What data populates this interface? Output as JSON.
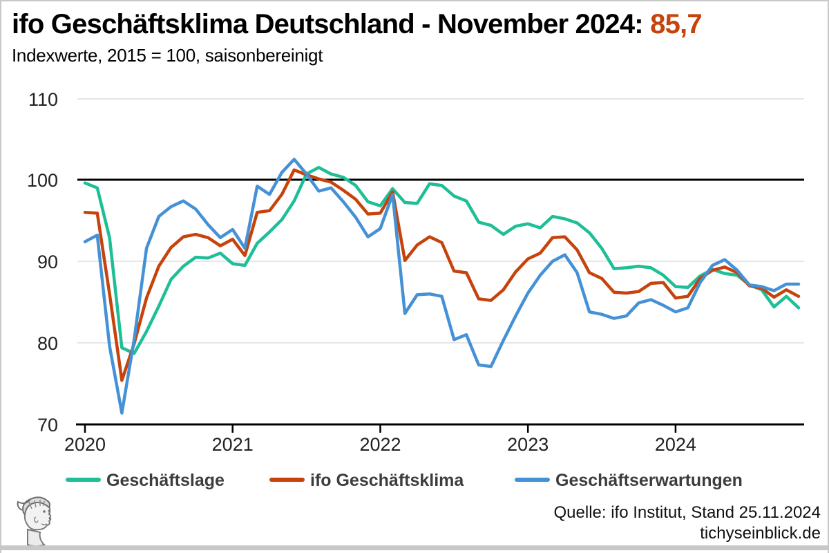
{
  "header": {
    "title_prefix": "ifo Geschäftsklima Deutschland - November 2024: ",
    "title_value": "85,7",
    "subtitle": "Indexwerte, 2015 = 100, saisonbereinigt"
  },
  "footer": {
    "source_line1": "Quelle: ifo Institut, Stand 25.11.2024",
    "source_line2": "tichyseinblick.de",
    "logo": "classical-head-engraving-logo"
  },
  "colors": {
    "accent_title_value": "#C6430C",
    "lage_green": "#1EBE96",
    "klima_red": "#C6430C",
    "erwartungen_blue": "#4491D6",
    "grid_gray": "#e6e6e6",
    "axis_black": "#000000",
    "frame_gray": "#c8c8c8"
  },
  "chart_data": {
    "type": "line",
    "title": "ifo Geschäftsklima Deutschland - November 2024: 85,7",
    "subtitle": "Indexwerte, 2015 = 100, saisonbereinigt",
    "frequency": "monthly",
    "x_start": "2020-01",
    "x_end": "2024-11",
    "x_tick_labels": [
      "2020",
      "2021",
      "2022",
      "2023",
      "2024"
    ],
    "y_ticks": [
      110,
      100,
      90,
      80,
      70
    ],
    "ylim": [
      70,
      112
    ],
    "reference_line": 100,
    "grid": "horizontal",
    "legend_position": "bottom",
    "series": [
      {
        "id": "geschaeftslage",
        "name": "Geschäftslage",
        "color": "#1EBE96",
        "values": [
          99.6,
          99.0,
          92.9,
          79.4,
          78.7,
          81.4,
          84.5,
          87.8,
          89.4,
          90.5,
          90.4,
          91.0,
          89.7,
          89.5,
          92.2,
          93.6,
          95.1,
          97.4,
          100.7,
          101.5,
          100.7,
          100.3,
          99.3,
          97.3,
          96.8,
          98.9,
          97.2,
          97.1,
          99.5,
          99.3,
          98.0,
          97.4,
          94.8,
          94.4,
          93.3,
          94.3,
          94.6,
          94.1,
          95.5,
          95.2,
          94.7,
          93.5,
          91.6,
          89.1,
          89.2,
          89.4,
          89.2,
          88.3,
          86.9,
          86.8,
          88.2,
          89.0,
          88.5,
          88.3,
          87.1,
          86.5,
          84.4,
          85.7,
          84.3
        ]
      },
      {
        "id": "ifo-geschaeftsklima",
        "name": "ifo Geschäftsklima",
        "color": "#C6430C",
        "values": [
          96.0,
          95.9,
          86.0,
          75.4,
          79.9,
          85.5,
          89.4,
          91.7,
          93.0,
          93.3,
          92.9,
          91.9,
          92.7,
          90.7,
          96.0,
          96.2,
          98.2,
          101.2,
          100.6,
          100.1,
          99.7,
          98.7,
          97.6,
          95.8,
          95.9,
          98.5,
          90.1,
          92.0,
          93.0,
          92.3,
          88.8,
          88.6,
          85.4,
          85.2,
          86.5,
          88.7,
          90.3,
          91.0,
          92.9,
          93.0,
          91.4,
          88.6,
          87.9,
          86.2,
          86.1,
          86.3,
          87.3,
          87.4,
          85.5,
          85.7,
          87.9,
          88.9,
          89.3,
          88.6,
          87.0,
          86.7,
          85.6,
          86.5,
          85.7
        ]
      },
      {
        "id": "geschaeftserwartungen",
        "name": "Geschäftserwartungen",
        "color": "#4491D6",
        "values": [
          92.4,
          93.2,
          79.6,
          71.4,
          80.4,
          91.6,
          95.5,
          96.7,
          97.4,
          96.4,
          94.5,
          92.9,
          93.9,
          91.6,
          99.2,
          98.2,
          100.9,
          102.5,
          100.7,
          98.6,
          99.0,
          97.3,
          95.4,
          93.0,
          94.0,
          98.2,
          83.6,
          85.9,
          86.0,
          85.7,
          80.4,
          81.0,
          77.3,
          77.1,
          80.3,
          83.3,
          86.1,
          88.3,
          90.0,
          90.8,
          88.6,
          83.8,
          83.5,
          83.0,
          83.3,
          84.9,
          85.3,
          84.6,
          83.8,
          84.3,
          87.4,
          89.5,
          90.2,
          88.9,
          87.1,
          86.9,
          86.4,
          87.2,
          87.2
        ]
      }
    ]
  }
}
